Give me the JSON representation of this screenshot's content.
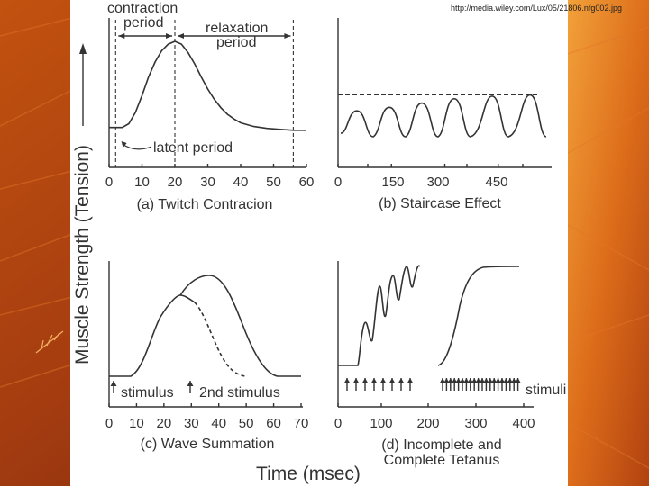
{
  "source_url": "http://media.wiley.com/Lux/05/21806.nfg002.jpg",
  "y_axis_label": "Muscle Strength (Tension)",
  "x_axis_label": "Time (msec)",
  "colors": {
    "bg_dark": "#7a2a0e",
    "bg_mid": "#b2430f",
    "bg_light": "#e5811c",
    "panel": "#ffffff",
    "ink": "#333333"
  },
  "chart_data": [
    {
      "type": "line",
      "title": "(a) Twitch Contracion",
      "xlim": [
        0,
        60
      ],
      "ticks": [
        0,
        10,
        20,
        30,
        40,
        50,
        60
      ],
      "x": [
        0,
        2,
        4,
        6,
        8,
        10,
        12,
        14,
        16,
        18,
        20,
        22,
        24,
        26,
        28,
        30,
        32,
        34,
        36,
        38,
        40,
        44,
        48,
        52,
        56,
        60
      ],
      "y": [
        0.08,
        0.08,
        0.08,
        0.12,
        0.24,
        0.42,
        0.62,
        0.78,
        0.9,
        0.97,
        1.0,
        0.97,
        0.88,
        0.76,
        0.62,
        0.49,
        0.38,
        0.29,
        0.22,
        0.17,
        0.13,
        0.09,
        0.07,
        0.06,
        0.05,
        0.05
      ],
      "annotations": [
        {
          "text": "contraction",
          "x": 0
        },
        {
          "text": "period",
          "x": 4
        },
        {
          "text": "relaxation",
          "x": 37
        },
        {
          "text": "period",
          "x": 38
        },
        {
          "text": "latent period",
          "x": 26
        }
      ],
      "markers_x": [
        2,
        20,
        56
      ]
    },
    {
      "type": "line",
      "title": "(b) Staircase Effect",
      "xlim": [
        0,
        600
      ],
      "ticks": [
        0,
        150,
        300,
        450
      ],
      "tick_labels_extra": [
        "0",
        "150",
        "300",
        "450"
      ],
      "peaks": [
        0.6,
        0.68,
        0.78,
        0.88,
        0.94,
        0.97
      ],
      "reference_level": 0.97
    },
    {
      "type": "line",
      "title": "(c) Wave Summation",
      "xlim": [
        0,
        70
      ],
      "ticks": [
        0,
        10,
        20,
        30,
        40,
        50,
        60,
        70
      ],
      "stimuli": [
        {
          "label": "stimulus",
          "x": 0
        },
        {
          "label": "2nd stimulus",
          "x": 27
        }
      ],
      "first_peak": 0.72,
      "summed_peak": 0.88
    },
    {
      "type": "line",
      "title_line1": "(d) Incomplete and",
      "title_line2": "Complete Tetanus",
      "xlim": [
        0,
        400
      ],
      "ticks": [
        0,
        100,
        200,
        300,
        400
      ],
      "stimuli_label": "stimuli",
      "incomplete_stimuli_x": [
        20,
        40,
        60,
        80,
        100,
        120,
        140,
        160
      ],
      "complete_stimuli_count": 20,
      "complete_plateau": 1.0
    }
  ]
}
